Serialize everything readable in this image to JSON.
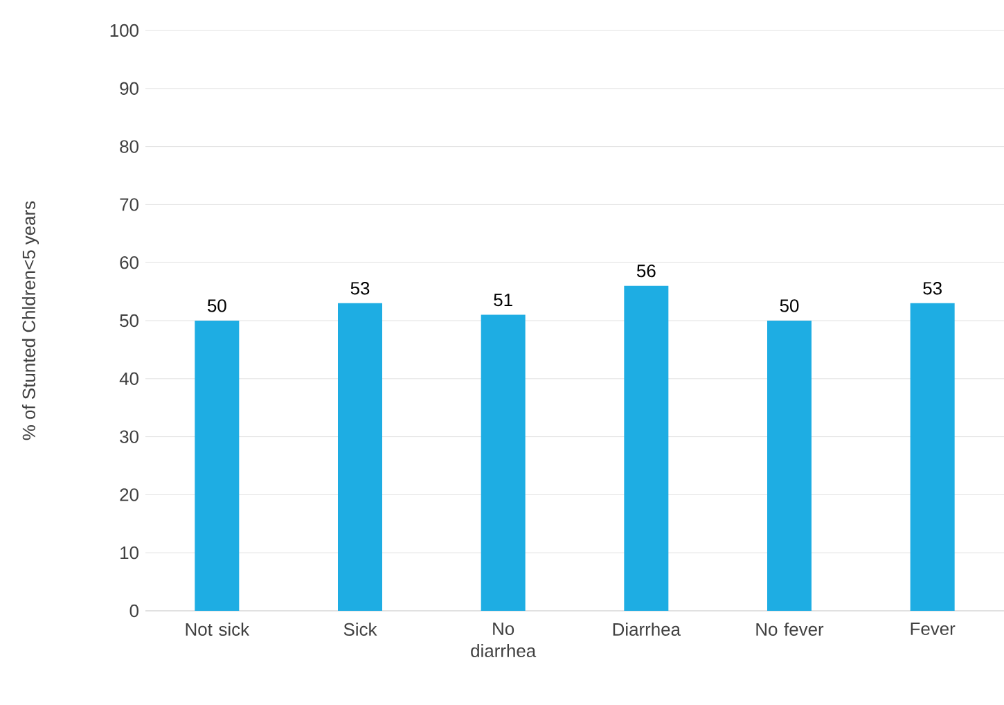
{
  "chart_data": {
    "type": "bar",
    "ylabel": "% of Stunted Chldren<5 years",
    "categories": [
      "Not sick",
      "Sick",
      "No diarrhea",
      "Diarrhea",
      "No fever",
      "Fever"
    ],
    "values": [
      50,
      53,
      51,
      56,
      50,
      53
    ],
    "color": "#1eade3",
    "ylim": [
      0,
      100
    ],
    "yticks": [
      0,
      10,
      20,
      30,
      40,
      50,
      60,
      70,
      80,
      90,
      100
    ],
    "grid": "y",
    "data_labels": true
  }
}
